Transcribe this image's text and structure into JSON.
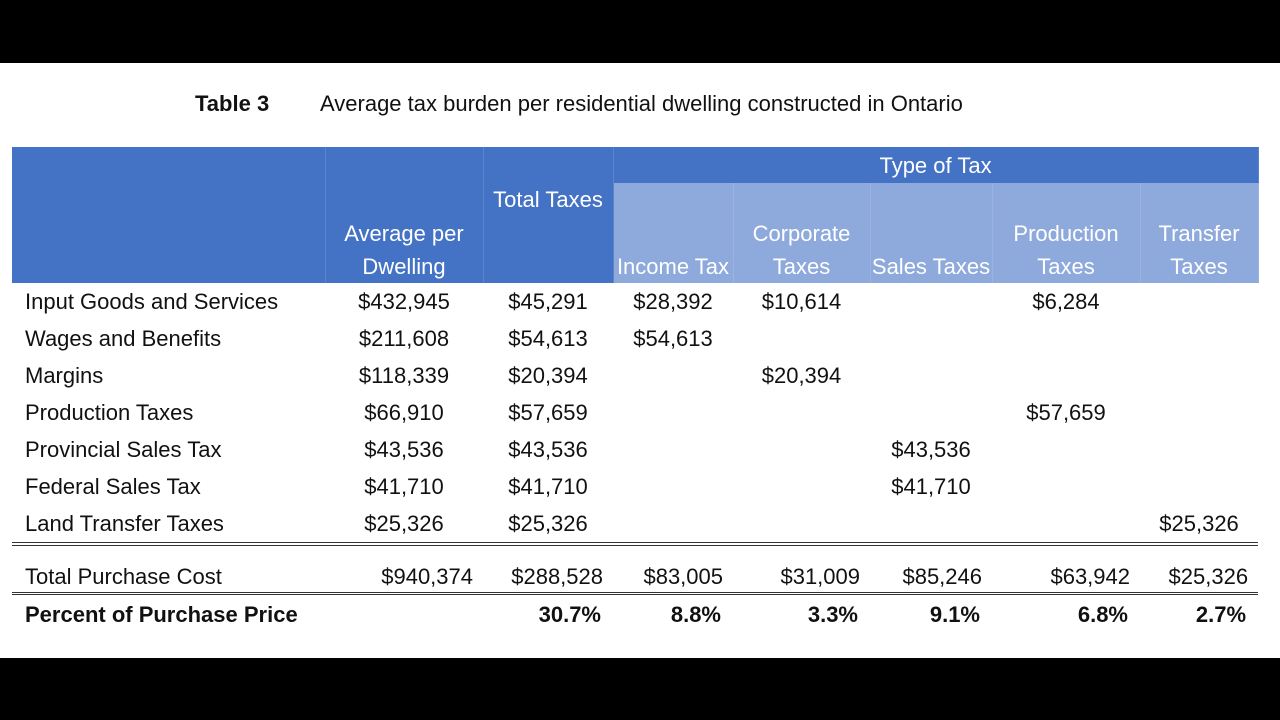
{
  "title": {
    "label": "Table 3",
    "text": "Average tax burden per residential dwelling constructed in Ontario"
  },
  "colors": {
    "header_dark": "#4472C4",
    "header_light": "#8EA9DB"
  },
  "header": {
    "group": "Type of Tax",
    "columns": [
      "",
      "Average per Dwelling",
      "Total Taxes",
      "Income Tax",
      "Corporate Taxes",
      "Sales Taxes",
      "Production Taxes",
      "Transfer Taxes"
    ]
  },
  "rows": [
    {
      "cells": [
        "Input Goods and Services",
        "$432,945",
        "$45,291",
        "$28,392",
        "$10,614",
        "",
        "$6,284",
        ""
      ]
    },
    {
      "cells": [
        "Wages and Benefits",
        "$211,608",
        "$54,613",
        "$54,613",
        "",
        "",
        "",
        ""
      ]
    },
    {
      "cells": [
        "Margins",
        "$118,339",
        "$20,394",
        "",
        "$20,394",
        "",
        "",
        ""
      ]
    },
    {
      "cells": [
        "Production Taxes",
        "$66,910",
        "$57,659",
        "",
        "",
        "",
        "$57,659",
        ""
      ]
    },
    {
      "cells": [
        "Provincial Sales Tax",
        "$43,536",
        "$43,536",
        "",
        "",
        "$43,536",
        "",
        ""
      ]
    },
    {
      "cells": [
        "Federal Sales Tax",
        "$41,710",
        "$41,710",
        "",
        "",
        "$41,710",
        "",
        ""
      ]
    },
    {
      "cells": [
        "Land Transfer Taxes",
        "$25,326",
        "$25,326",
        "",
        "",
        "",
        "",
        "$25,326"
      ]
    }
  ],
  "total": {
    "cells": [
      "Total Purchase Cost",
      "$940,374",
      "$288,528",
      "$83,005",
      "$31,009",
      "$85,246",
      "$63,942",
      "$25,326"
    ]
  },
  "percent": {
    "cells": [
      "Percent of Purchase Price",
      "",
      "30.7%",
      "8.8%",
      "3.3%",
      "9.1%",
      "6.8%",
      "2.7%"
    ]
  }
}
